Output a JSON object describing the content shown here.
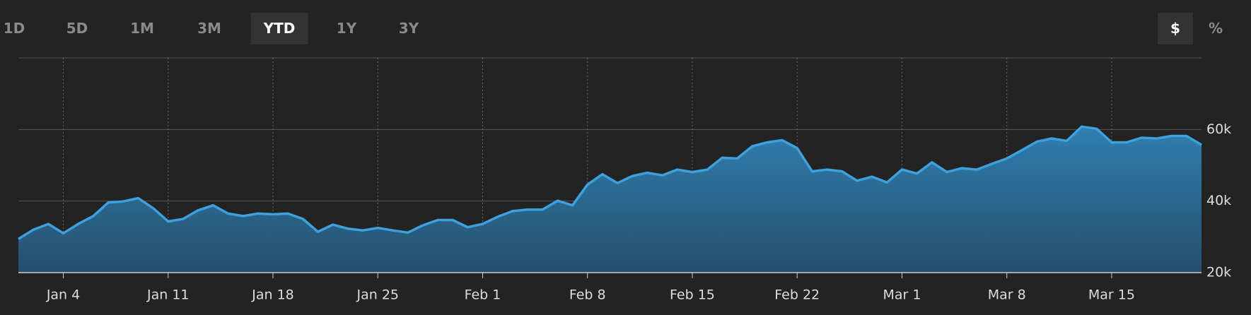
{
  "toolbar": {
    "ranges": [
      "1D",
      "5D",
      "1M",
      "3M",
      "YTD",
      "1Y",
      "3Y"
    ],
    "active_range": "YTD",
    "units": [
      "$",
      "%"
    ],
    "active_unit": "$"
  },
  "chart_data": {
    "type": "area",
    "color": "#3ea0dc",
    "x": [
      "Jan 1",
      "Jan 2",
      "Jan 3",
      "Jan 4",
      "Jan 5",
      "Jan 6",
      "Jan 7",
      "Jan 8",
      "Jan 9",
      "Jan 10",
      "Jan 11",
      "Jan 12",
      "Jan 13",
      "Jan 14",
      "Jan 15",
      "Jan 16",
      "Jan 17",
      "Jan 18",
      "Jan 19",
      "Jan 20",
      "Jan 21",
      "Jan 22",
      "Jan 23",
      "Jan 24",
      "Jan 25",
      "Jan 26",
      "Jan 27",
      "Jan 28",
      "Jan 29",
      "Jan 30",
      "Jan 31",
      "Feb 1",
      "Feb 2",
      "Feb 3",
      "Feb 4",
      "Feb 5",
      "Feb 6",
      "Feb 7",
      "Feb 8",
      "Feb 9",
      "Feb 10",
      "Feb 11",
      "Feb 12",
      "Feb 13",
      "Feb 14",
      "Feb 15",
      "Feb 16",
      "Feb 17",
      "Feb 18",
      "Feb 19",
      "Feb 20",
      "Feb 21",
      "Feb 22",
      "Feb 23",
      "Feb 24",
      "Feb 25",
      "Feb 26",
      "Feb 27",
      "Feb 28",
      "Mar 1",
      "Mar 2",
      "Mar 3",
      "Mar 4",
      "Mar 5",
      "Mar 6",
      "Mar 7",
      "Mar 8",
      "Mar 9",
      "Mar 10",
      "Mar 11",
      "Mar 12",
      "Mar 13",
      "Mar 14",
      "Mar 15",
      "Mar 16",
      "Mar 17",
      "Mar 18",
      "Mar 19",
      "Mar 20",
      "Mar 21"
    ],
    "values": [
      29400,
      32000,
      33600,
      31000,
      33600,
      35800,
      39600,
      39900,
      40800,
      38000,
      34300,
      35000,
      37400,
      38800,
      36500,
      35800,
      36500,
      36300,
      36500,
      35000,
      31400,
      33400,
      32300,
      31800,
      32500,
      31800,
      31200,
      33200,
      34700,
      34700,
      32700,
      33600,
      35600,
      37200,
      37600,
      37600,
      40100,
      38800,
      44600,
      47500,
      45000,
      47000,
      47900,
      47200,
      48800,
      48100,
      48800,
      52100,
      51900,
      55300,
      56400,
      57000,
      54800,
      48300,
      48800,
      48300,
      45700,
      46800,
      45200,
      48800,
      47700,
      50800,
      48100,
      49200,
      48800,
      50400,
      51900,
      54200,
      56600,
      57500,
      56800,
      60800,
      60200,
      56400,
      56400,
      57700,
      57500,
      58200,
      58200,
      55700
    ],
    "xticks": [
      "Jan 4",
      "Jan 11",
      "Jan 18",
      "Jan 25",
      "Feb 1",
      "Feb 8",
      "Feb 15",
      "Feb 22",
      "Mar 1",
      "Mar 8",
      "Mar 15"
    ],
    "ylim": [
      20000,
      80000
    ],
    "yticks": [
      {
        "value": 20000,
        "label": "20k"
      },
      {
        "value": 40000,
        "label": "40k"
      },
      {
        "value": 60000,
        "label": "60k"
      }
    ],
    "grid": true
  }
}
